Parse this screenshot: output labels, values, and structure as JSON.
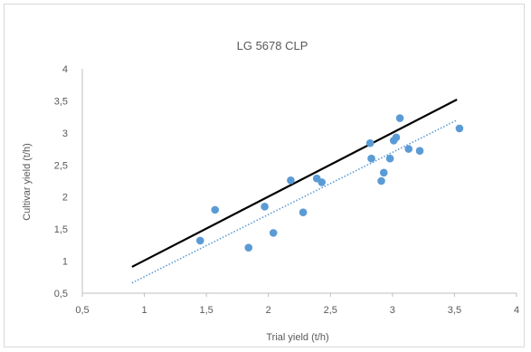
{
  "chart_data": {
    "type": "scatter",
    "title": "LG 5678 CLP",
    "xlabel": "Trial yield (t/h)",
    "ylabel": "Cultivar yield (t/h)",
    "xlim": [
      0.5,
      4
    ],
    "ylim": [
      0.5,
      4
    ],
    "x_ticks": [
      "0,5",
      "1",
      "1,5",
      "2",
      "2,5",
      "3",
      "3,5",
      "4"
    ],
    "y_ticks": [
      "0,5",
      "1",
      "1,5",
      "2",
      "2,5",
      "3",
      "3,5",
      "4"
    ],
    "grid": false,
    "legend": "none",
    "point_color": "#5b9bd5",
    "series": [
      {
        "type": "scatter",
        "points": [
          [
            1.45,
            1.32
          ],
          [
            1.57,
            1.8
          ],
          [
            1.84,
            1.21
          ],
          [
            1.97,
            1.85
          ],
          [
            2.04,
            1.44
          ],
          [
            2.18,
            2.26
          ],
          [
            2.28,
            1.76
          ],
          [
            2.39,
            2.29
          ],
          [
            2.43,
            2.23
          ],
          [
            2.82,
            2.84
          ],
          [
            2.83,
            2.6
          ],
          [
            2.91,
            2.25
          ],
          [
            2.93,
            2.38
          ],
          [
            2.98,
            2.6
          ],
          [
            3.01,
            2.88
          ],
          [
            3.03,
            2.93
          ],
          [
            3.06,
            3.23
          ],
          [
            3.13,
            2.75
          ],
          [
            3.22,
            2.72
          ],
          [
            3.54,
            3.07
          ]
        ]
      },
      {
        "type": "line",
        "color": "#000000",
        "style": "solid",
        "points": [
          [
            0.9,
            0.91
          ],
          [
            3.52,
            3.52
          ]
        ]
      },
      {
        "type": "line",
        "color": "#5b9bd5",
        "style": "dotted",
        "points": [
          [
            0.9,
            0.66
          ],
          [
            3.52,
            3.2
          ]
        ]
      }
    ]
  }
}
